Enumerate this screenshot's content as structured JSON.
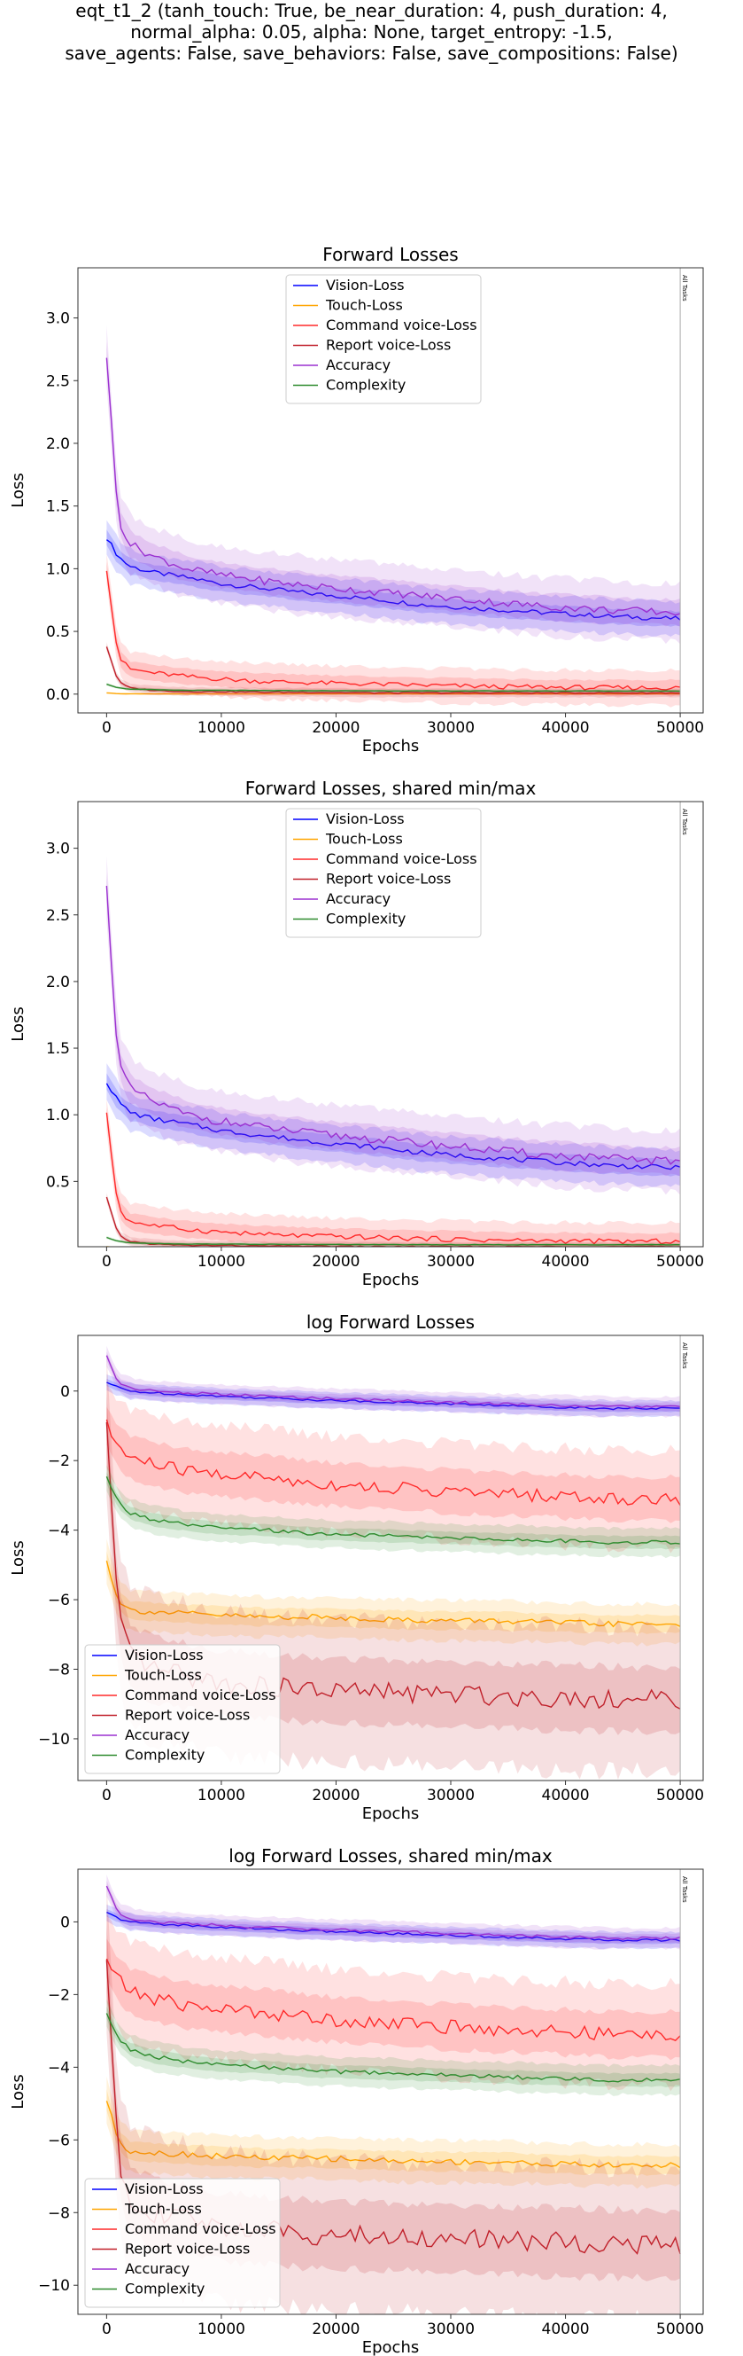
{
  "figure_title": [
    "eqt_t1_2 (tanh_touch: True, be_near_duration: 4, push_duration: 4,",
    "normal_alpha: 0.05, alpha: None, target_entropy: -1.5,",
    "save_agents: False, save_behaviors: False, save_compositions: False)"
  ],
  "colors": {
    "vision": "#0000ff",
    "touch": "#ffa500",
    "command": "#ff2a2a",
    "report": "#c0202a",
    "accuracy": "#9b30d0",
    "complexity": "#2e8b2e"
  },
  "chart_data": [
    {
      "type": "line",
      "title": "Forward Losses",
      "xlabel": "Epochs",
      "ylabel": "Loss",
      "xlim": [
        -2500,
        52000
      ],
      "ylim": [
        -0.15,
        3.4
      ],
      "xticks": [
        "0",
        "10000",
        "20000",
        "30000",
        "40000",
        "50000"
      ],
      "yticks": [
        "0.0",
        "0.5",
        "1.0",
        "1.5",
        "2.0",
        "2.5",
        "3.0"
      ],
      "legend_loc": "upper-center",
      "vline_label": "All Tasks",
      "vline_x": 50000,
      "series": [
        {
          "name": "Vision-Loss",
          "key": "vision",
          "values": [
            1.25,
            1.1,
            1.02,
            0.97,
            0.93,
            0.88,
            0.84,
            0.8,
            0.76,
            0.71,
            0.68,
            0.65,
            0.62,
            0.6
          ],
          "band": 0.12
        },
        {
          "name": "Touch-Loss",
          "key": "touch",
          "values": [
            0.01,
            0.003,
            0.002,
            0.002,
            0.002,
            0.002,
            0.002,
            0.002,
            0.002,
            0.002,
            0.002,
            0.002,
            0.002,
            0.002
          ],
          "band": 0.005
        },
        {
          "name": "Command voice-Loss",
          "key": "command",
          "values": [
            1.0,
            0.3,
            0.2,
            0.17,
            0.14,
            0.12,
            0.1,
            0.09,
            0.08,
            0.07,
            0.06,
            0.055,
            0.05,
            0.05
          ],
          "band": 0.12
        },
        {
          "name": "Report voice-Loss",
          "key": "report",
          "values": [
            0.38,
            0.1,
            0.05,
            0.03,
            0.02,
            0.02,
            0.015,
            0.015,
            0.01,
            0.01,
            0.01,
            0.01,
            0.01,
            0.01
          ],
          "band": 0.03
        },
        {
          "name": "Accuracy",
          "key": "accuracy",
          "values": [
            2.7,
            1.4,
            1.2,
            1.1,
            1.0,
            0.95,
            0.9,
            0.86,
            0.82,
            0.78,
            0.74,
            0.7,
            0.67,
            0.65
          ],
          "band": 0.2
        },
        {
          "name": "Complexity",
          "key": "complexity",
          "values": [
            0.08,
            0.05,
            0.04,
            0.035,
            0.03,
            0.03,
            0.028,
            0.027,
            0.026,
            0.025,
            0.025,
            0.025,
            0.025,
            0.025
          ],
          "band": 0.01
        }
      ]
    },
    {
      "type": "line",
      "title": "Forward Losses, shared min/max",
      "xlabel": "Epochs",
      "ylabel": "Loss",
      "xlim": [
        -2500,
        52000
      ],
      "ylim": [
        0.01,
        3.35
      ],
      "xticks": [
        "0",
        "10000",
        "20000",
        "30000",
        "40000",
        "50000"
      ],
      "yticks": [
        "0.5",
        "1.0",
        "1.5",
        "2.0",
        "2.5",
        "3.0"
      ],
      "legend_loc": "upper-center",
      "vline_label": "All Tasks",
      "vline_x": 50000,
      "series": [
        {
          "name": "Vision-Loss",
          "key": "vision",
          "values": [
            1.25,
            1.1,
            1.02,
            0.97,
            0.93,
            0.88,
            0.84,
            0.8,
            0.76,
            0.71,
            0.68,
            0.65,
            0.62,
            0.6
          ],
          "band": 0.12
        },
        {
          "name": "Touch-Loss",
          "key": "touch",
          "values": [
            0.01,
            0.003,
            0.002,
            0.002,
            0.002,
            0.002,
            0.002,
            0.002,
            0.002,
            0.002,
            0.002,
            0.002,
            0.002,
            0.002
          ],
          "band": 0.005
        },
        {
          "name": "Command voice-Loss",
          "key": "command",
          "values": [
            1.0,
            0.3,
            0.2,
            0.17,
            0.14,
            0.12,
            0.1,
            0.09,
            0.08,
            0.07,
            0.06,
            0.055,
            0.05,
            0.05
          ],
          "band": 0.12
        },
        {
          "name": "Report voice-Loss",
          "key": "report",
          "values": [
            0.38,
            0.1,
            0.05,
            0.03,
            0.02,
            0.02,
            0.015,
            0.015,
            0.01,
            0.01,
            0.01,
            0.01,
            0.01,
            0.01
          ],
          "band": 0.03
        },
        {
          "name": "Accuracy",
          "key": "accuracy",
          "values": [
            2.7,
            1.4,
            1.2,
            1.1,
            1.0,
            0.95,
            0.9,
            0.86,
            0.82,
            0.78,
            0.74,
            0.7,
            0.67,
            0.65
          ],
          "band": 0.2
        },
        {
          "name": "Complexity",
          "key": "complexity",
          "values": [
            0.08,
            0.05,
            0.04,
            0.035,
            0.03,
            0.03,
            0.028,
            0.027,
            0.026,
            0.025,
            0.025,
            0.025,
            0.025,
            0.025
          ],
          "band": 0.01
        }
      ]
    },
    {
      "type": "line",
      "title": "log Forward Losses",
      "xlabel": "Epochs",
      "ylabel": "Loss",
      "xlim": [
        -2500,
        52000
      ],
      "ylim": [
        -11.2,
        1.6
      ],
      "xticks": [
        "0",
        "10000",
        "20000",
        "30000",
        "40000",
        "50000"
      ],
      "yticks": [
        "−10",
        "−8",
        "−6",
        "−4",
        "−2",
        "0"
      ],
      "legend_loc": "lower-left",
      "vline_label": "All Tasks",
      "vline_x": 50000,
      "series": [
        {
          "name": "Vision-Loss",
          "key": "vision",
          "values": [
            0.25,
            0.1,
            0.0,
            -0.05,
            -0.1,
            -0.15,
            -0.2,
            -0.25,
            -0.3,
            -0.35,
            -0.4,
            -0.45,
            -0.5,
            -0.5
          ],
          "band": 0.2
        },
        {
          "name": "Touch-Loss",
          "key": "touch",
          "values": [
            -4.9,
            -6.0,
            -6.3,
            -6.35,
            -6.4,
            -6.45,
            -6.5,
            -6.5,
            -6.55,
            -6.6,
            -6.6,
            -6.65,
            -6.7,
            -6.7
          ],
          "band": 0.5
        },
        {
          "name": "Command voice-Loss",
          "key": "command",
          "values": [
            -1.0,
            -1.6,
            -1.9,
            -2.1,
            -2.3,
            -2.4,
            -2.5,
            -2.65,
            -2.75,
            -2.85,
            -2.95,
            -3.0,
            -3.1,
            -3.1
          ],
          "band": 1.2
        },
        {
          "name": "Report voice-Loss",
          "key": "report",
          "values": [
            -1.0,
            -6.5,
            -7.6,
            -8.0,
            -8.2,
            -8.4,
            -8.5,
            -8.6,
            -8.65,
            -8.7,
            -8.75,
            -8.8,
            -8.85,
            -8.9
          ],
          "band": 1.8
        },
        {
          "name": "Accuracy",
          "key": "accuracy",
          "values": [
            1.0,
            0.25,
            0.1,
            0.0,
            -0.05,
            -0.1,
            -0.15,
            -0.2,
            -0.25,
            -0.3,
            -0.35,
            -0.4,
            -0.45,
            -0.45
          ],
          "band": 0.25
        },
        {
          "name": "Complexity",
          "key": "complexity",
          "values": [
            -2.5,
            -3.2,
            -3.5,
            -3.7,
            -3.85,
            -3.95,
            -4.0,
            -4.1,
            -4.15,
            -4.2,
            -4.25,
            -4.3,
            -4.35,
            -4.35
          ],
          "band": 0.35
        }
      ]
    },
    {
      "type": "line",
      "title": "log Forward Losses, shared min/max",
      "xlabel": "Epochs",
      "ylabel": "Loss",
      "xlim": [
        -2500,
        52000
      ],
      "ylim": [
        -10.8,
        1.45
      ],
      "xticks": [
        "0",
        "10000",
        "20000",
        "30000",
        "40000",
        "50000"
      ],
      "yticks": [
        "−10",
        "−8",
        "−6",
        "−4",
        "−2",
        "0"
      ],
      "legend_loc": "lower-left",
      "vline_label": "All Tasks",
      "vline_x": 50000,
      "series": [
        {
          "name": "Vision-Loss",
          "key": "vision",
          "values": [
            0.25,
            0.1,
            0.0,
            -0.05,
            -0.1,
            -0.15,
            -0.2,
            -0.25,
            -0.3,
            -0.35,
            -0.4,
            -0.45,
            -0.5,
            -0.5
          ],
          "band": 0.2
        },
        {
          "name": "Touch-Loss",
          "key": "touch",
          "values": [
            -4.9,
            -6.0,
            -6.3,
            -6.35,
            -6.4,
            -6.45,
            -6.5,
            -6.5,
            -6.55,
            -6.6,
            -6.6,
            -6.65,
            -6.7,
            -6.7
          ],
          "band": 0.5
        },
        {
          "name": "Command voice-Loss",
          "key": "command",
          "values": [
            -1.0,
            -1.6,
            -1.9,
            -2.1,
            -2.3,
            -2.4,
            -2.5,
            -2.65,
            -2.75,
            -2.85,
            -2.95,
            -3.0,
            -3.1,
            -3.1
          ],
          "band": 1.2
        },
        {
          "name": "Report voice-Loss",
          "key": "report",
          "values": [
            -1.0,
            -6.5,
            -7.6,
            -8.0,
            -8.2,
            -8.4,
            -8.5,
            -8.6,
            -8.65,
            -8.7,
            -8.75,
            -8.8,
            -8.85,
            -8.9
          ],
          "band": 1.8
        },
        {
          "name": "Accuracy",
          "key": "accuracy",
          "values": [
            1.0,
            0.25,
            0.1,
            0.0,
            -0.05,
            -0.1,
            -0.15,
            -0.2,
            -0.25,
            -0.3,
            -0.35,
            -0.4,
            -0.45,
            -0.45
          ],
          "band": 0.25
        },
        {
          "name": "Complexity",
          "key": "complexity",
          "values": [
            -2.5,
            -3.2,
            -3.5,
            -3.7,
            -3.85,
            -3.95,
            -4.0,
            -4.1,
            -4.15,
            -4.2,
            -4.25,
            -4.3,
            -4.35,
            -4.35
          ],
          "band": 0.35
        }
      ]
    }
  ]
}
